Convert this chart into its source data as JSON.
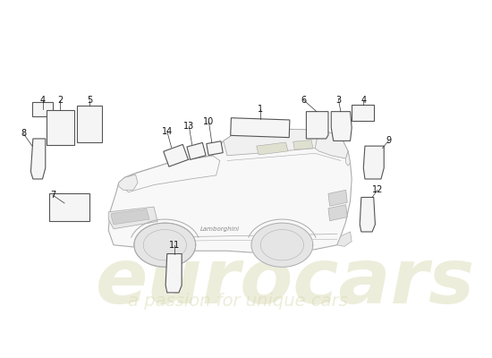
{
  "bg_color": "#ffffff",
  "watermark1": "eurocars",
  "watermark2": "a passion for unique cars",
  "wm_color": "#d8d8b0",
  "wm_alpha": 0.45,
  "lc": "#aaaaaa",
  "lw": 0.7,
  "label_fs": 7,
  "label_color": "#111111",
  "anno_lw": 0.5,
  "anno_color": "#333333"
}
